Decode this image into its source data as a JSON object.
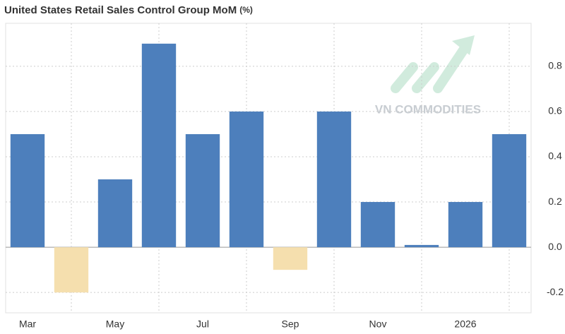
{
  "chart_data": {
    "type": "bar",
    "title": "United States Retail Sales Control Group MoM",
    "title_unit": "(%)",
    "watermark": "VN COMMODITIES",
    "categories": [
      "Mar",
      null,
      "May",
      null,
      "Jul",
      null,
      "Sep",
      null,
      "Nov",
      null,
      "2026",
      null
    ],
    "values": [
      0.5,
      -0.2,
      0.3,
      0.9,
      0.5,
      0.6,
      -0.1,
      0.6,
      0.2,
      0.01,
      0.2,
      0.5
    ],
    "color": "#4d7fbc",
    "negative_color": "#f5dfae",
    "ylim": [
      -0.29,
      0.99
    ],
    "yticks": [
      -0.2,
      {
        "value": 0,
        "label": "0.0"
      },
      0.2,
      0.4,
      0.6,
      0.8
    ],
    "grid": true,
    "y_axis_side": "right"
  }
}
